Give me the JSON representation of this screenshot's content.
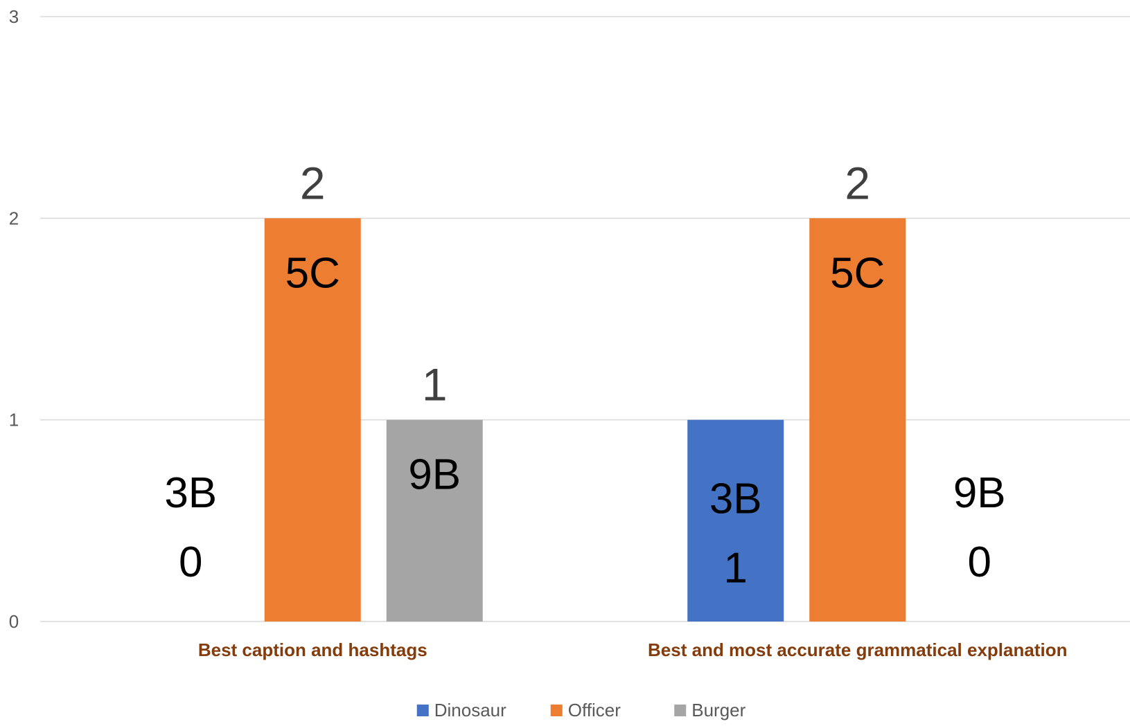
{
  "chart_data": {
    "type": "bar",
    "categories": [
      "Best caption and hashtags",
      "Best and most accurate grammatical explanation"
    ],
    "series": [
      {
        "name": "Dinosaur",
        "values": [
          0,
          1
        ],
        "color": "#4472C4"
      },
      {
        "name": "Officer",
        "values": [
          2,
          2
        ],
        "color": "#ED7D31"
      },
      {
        "name": "Burger",
        "values": [
          1,
          0
        ],
        "color": "#A5A5A5"
      }
    ],
    "ylim": [
      0,
      3
    ],
    "yticks": [
      "0",
      "1",
      "2",
      "3"
    ],
    "grid": true,
    "legend": "bottom",
    "category_label_color": "#843C0C",
    "data_labels": [
      [
        "",
        "2",
        "1"
      ],
      [
        "",
        "2",
        ""
      ]
    ],
    "annotations": [
      [
        "3B\n0",
        "5C",
        "9B"
      ],
      [
        "3B\n1",
        "5C",
        "9B\n0"
      ]
    ]
  }
}
